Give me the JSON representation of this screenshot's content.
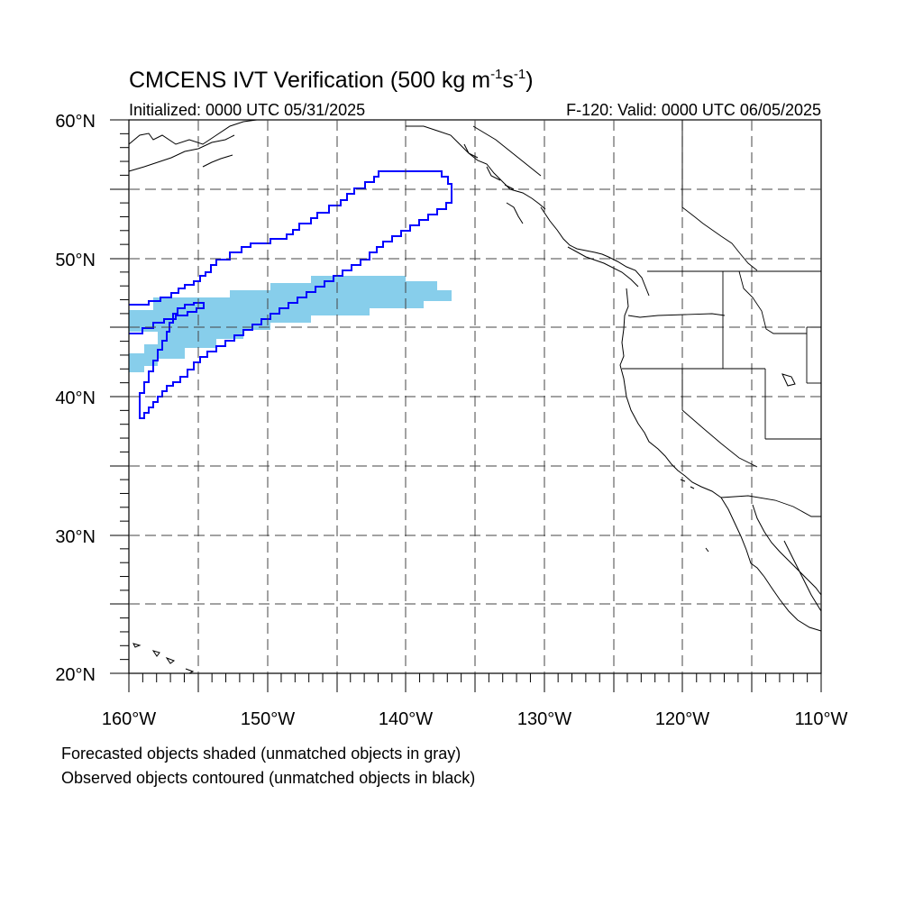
{
  "title": {
    "text": "CMCENS IVT Verification (500 kg m",
    "exp1": "-1",
    "mid": "s",
    "exp2": "-1",
    "end": ")"
  },
  "init_label": "Initialized: 0000 UTC 05/31/2025",
  "valid_label": "F-120: Valid: 0000 UTC 06/05/2025",
  "lat_labels": [
    "60°N",
    "50°N",
    "40°N",
    "30°N",
    "20°N"
  ],
  "lon_labels": [
    "160°W",
    "150°W",
    "140°W",
    "130°W",
    "120°W",
    "110°W"
  ],
  "captions": [
    "Forecasted objects shaded (unmatched objects in gray)",
    "Observed objects contoured (unmatched objects in black)"
  ],
  "colors": {
    "forecast_fill": "#87ceeb",
    "observed_contour": "#0000ff",
    "coastline": "#000000",
    "grid": "#444444"
  },
  "map_extent": {
    "lon_min": -160,
    "lon_max": -110,
    "lat_min": 20,
    "lat_max": 60
  }
}
